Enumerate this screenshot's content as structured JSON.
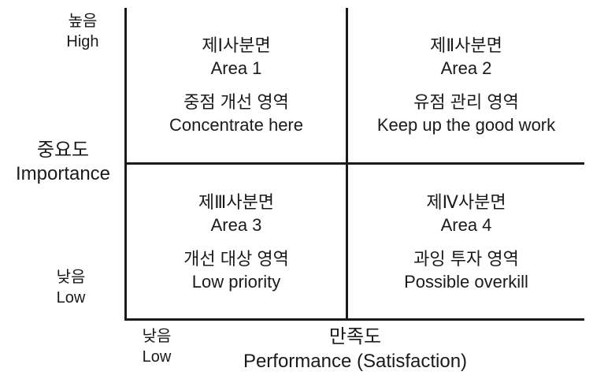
{
  "y_axis": {
    "high_ko": "높음",
    "high_en": "High",
    "title_ko": "중요도",
    "title_en": "Importance",
    "low_ko": "낮음",
    "low_en": "Low"
  },
  "x_axis": {
    "low_ko": "낮음",
    "low_en": "Low",
    "title_ko": "만족도",
    "title_en": "Performance (Satisfaction)"
  },
  "quadrants": [
    {
      "title_ko": "제Ⅰ사분면",
      "title_en": "Area 1",
      "strategy_ko": "중점 개선 영역",
      "strategy_en": "Concentrate here"
    },
    {
      "title_ko": "제Ⅱ사분면",
      "title_en": "Area 2",
      "strategy_ko": "유점 관리 영역",
      "strategy_en": "Keep up the good work"
    },
    {
      "title_ko": "제Ⅲ사분면",
      "title_en": "Area 3",
      "strategy_ko": "개선 대상 영역",
      "strategy_en": "Low priority"
    },
    {
      "title_ko": "제Ⅳ사분면",
      "title_en": "Area 4",
      "strategy_ko": "과잉 투자 영역",
      "strategy_en": "Possible overkill"
    }
  ]
}
